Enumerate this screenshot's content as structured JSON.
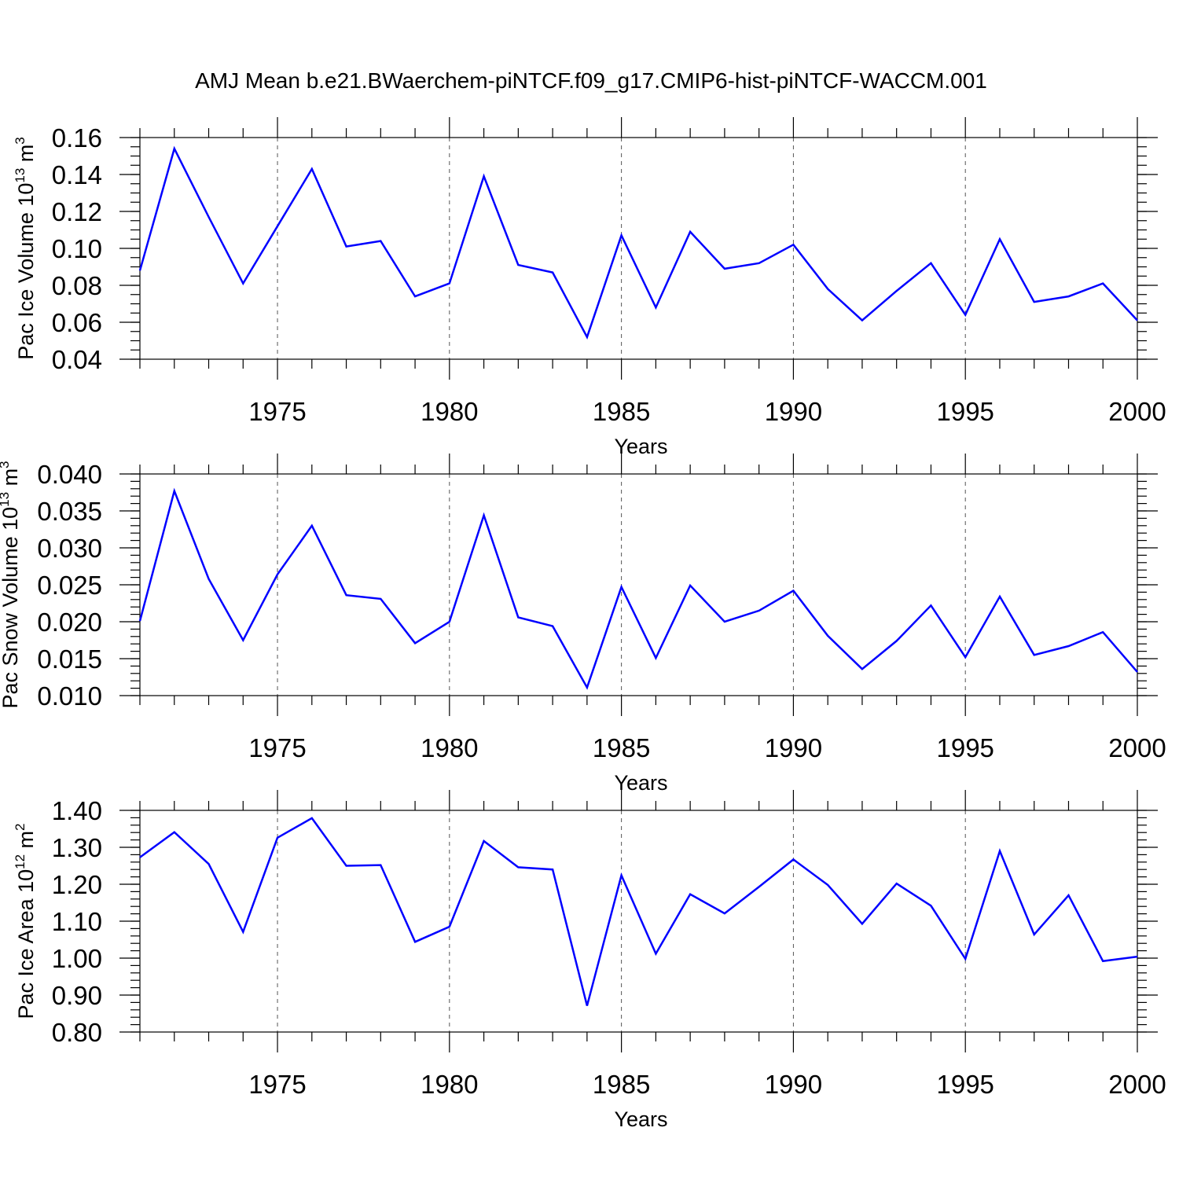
{
  "figure": {
    "title": "AMJ Mean b.e21.BWaerchem-piNTCF.f09_g17.CMIP6-hist-piNTCF-WACCM.001",
    "line_color": "#0000ff"
  },
  "chart_data": [
    {
      "type": "line",
      "title": "",
      "xlabel": "Years",
      "ylabel": "Pac Ice Volume 10",
      "ylabel_exp": "13",
      "ylabel_unit": "m",
      "ylabel_unit_exp": "3",
      "xlim": [
        1971,
        2000
      ],
      "ylim": [
        0.04,
        0.16
      ],
      "x_ticks": [
        1975,
        1980,
        1985,
        1990,
        1995,
        2000
      ],
      "y_ticks": [
        0.04,
        0.06,
        0.08,
        0.1,
        0.12,
        0.14,
        0.16
      ],
      "y_tick_labels": [
        "0.04",
        "0.06",
        "0.08",
        "0.10",
        "0.12",
        "0.14",
        "0.16"
      ],
      "y_minor_step": 0.005,
      "x_gridlines": [
        1975,
        1980,
        1985,
        1990,
        1995
      ],
      "series": [
        {
          "x": [
            1971,
            1972,
            1973,
            1974,
            1975,
            1976,
            1977,
            1978,
            1979,
            1980,
            1981,
            1982,
            1983,
            1984,
            1985,
            1986,
            1987,
            1988,
            1989,
            1990,
            1991,
            1992,
            1993,
            1994,
            1995,
            1996,
            1997,
            1998,
            1999,
            2000
          ],
          "values": [
            0.088,
            0.154,
            0.117,
            0.081,
            0.112,
            0.143,
            0.101,
            0.104,
            0.074,
            0.081,
            0.139,
            0.091,
            0.087,
            0.052,
            0.107,
            0.068,
            0.109,
            0.089,
            0.092,
            0.102,
            0.078,
            0.061,
            0.077,
            0.092,
            0.064,
            0.105,
            0.071,
            0.074,
            0.081,
            0.061
          ]
        }
      ]
    },
    {
      "type": "line",
      "title": "",
      "xlabel": "Years",
      "ylabel": "Pac Snow Volume 10",
      "ylabel_exp": "13",
      "ylabel_unit": "m",
      "ylabel_unit_exp": "3",
      "xlim": [
        1971,
        2000
      ],
      "ylim": [
        0.01,
        0.04
      ],
      "x_ticks": [
        1975,
        1980,
        1985,
        1990,
        1995,
        2000
      ],
      "y_ticks": [
        0.01,
        0.015,
        0.02,
        0.025,
        0.03,
        0.035,
        0.04
      ],
      "y_tick_labels": [
        "0.010",
        "0.015",
        "0.020",
        "0.025",
        "0.030",
        "0.035",
        "0.040"
      ],
      "y_minor_step": 0.001,
      "x_gridlines": [
        1975,
        1980,
        1985,
        1990,
        1995
      ],
      "series": [
        {
          "x": [
            1971,
            1972,
            1973,
            1974,
            1975,
            1976,
            1977,
            1978,
            1979,
            1980,
            1981,
            1982,
            1983,
            1984,
            1985,
            1986,
            1987,
            1988,
            1989,
            1990,
            1991,
            1992,
            1993,
            1994,
            1995,
            1996,
            1997,
            1998,
            1999,
            2000
          ],
          "values": [
            0.0201,
            0.0377,
            0.0258,
            0.0175,
            0.0264,
            0.033,
            0.0236,
            0.0231,
            0.0171,
            0.02,
            0.0344,
            0.0206,
            0.0194,
            0.0111,
            0.0247,
            0.0151,
            0.0249,
            0.02,
            0.0215,
            0.0242,
            0.0181,
            0.0136,
            0.0174,
            0.0222,
            0.0152,
            0.0234,
            0.0155,
            0.0167,
            0.0186,
            0.0132
          ]
        }
      ]
    },
    {
      "type": "line",
      "title": "",
      "xlabel": "Years",
      "ylabel": "Pac Ice Area 10",
      "ylabel_exp": "12",
      "ylabel_unit": "m",
      "ylabel_unit_exp": "2",
      "xlim": [
        1971,
        2000
      ],
      "ylim": [
        0.8,
        1.4
      ],
      "x_ticks": [
        1975,
        1980,
        1985,
        1990,
        1995,
        2000
      ],
      "y_ticks": [
        0.8,
        0.9,
        1.0,
        1.1,
        1.2,
        1.3,
        1.4
      ],
      "y_tick_labels": [
        "0.80",
        "0.90",
        "1.00",
        "1.10",
        "1.20",
        "1.30",
        "1.40"
      ],
      "y_minor_step": 0.02,
      "x_gridlines": [
        1975,
        1980,
        1985,
        1990,
        1995
      ],
      "series": [
        {
          "x": [
            1971,
            1972,
            1973,
            1974,
            1975,
            1976,
            1977,
            1978,
            1979,
            1980,
            1981,
            1982,
            1983,
            1984,
            1985,
            1986,
            1987,
            1988,
            1989,
            1990,
            1991,
            1992,
            1993,
            1994,
            1995,
            1996,
            1997,
            1998,
            1999,
            2000
          ],
          "values": [
            1.273,
            1.341,
            1.255,
            1.071,
            1.326,
            1.379,
            1.25,
            1.252,
            1.044,
            1.085,
            1.317,
            1.246,
            1.24,
            0.871,
            1.224,
            1.012,
            1.173,
            1.121,
            1.193,
            1.267,
            1.198,
            1.093,
            1.202,
            1.142,
            0.998,
            1.29,
            1.064,
            1.17,
            0.992,
            1.004
          ]
        }
      ]
    }
  ]
}
